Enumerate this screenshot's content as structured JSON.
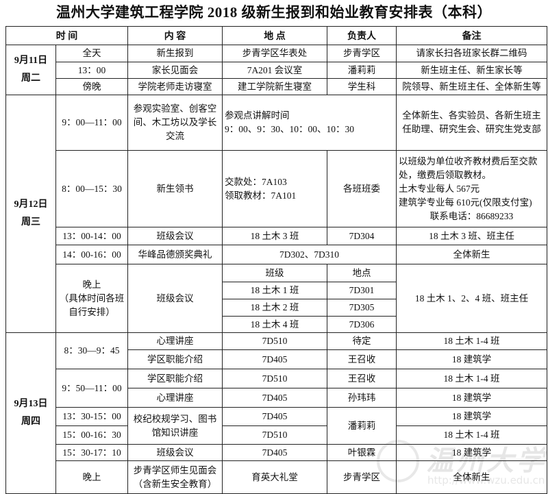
{
  "title": "温州大学建筑工程学院 2018 级新生报到和始业教育安排表（本科）",
  "header": {
    "time": "时 间",
    "content": "内 容",
    "place": "地 点",
    "person": "负责人",
    "note": "备注"
  },
  "day1": {
    "date": "9月11日",
    "weekday": "周二",
    "rows": [
      {
        "time": "全天",
        "content": "新生报到",
        "place": "步青学区华表处",
        "person": "步青学区",
        "note": "请家长扫各班家长群二维码"
      },
      {
        "time": "13：00",
        "content": "家长见面会",
        "place": "7A201 会议室",
        "person": "潘莉莉",
        "note": "新生班主任、新生家长等"
      },
      {
        "time": "傍晚",
        "content": "学院老师走访寝室",
        "place": "建工学院新生寝室",
        "person": "学生科",
        "note": "院领导、新生班主任、全体新生等"
      }
    ]
  },
  "day2": {
    "date": "9月12日",
    "weekday": "周三",
    "visit": {
      "time": "9：00—11：00",
      "content": "参观实验室、创客空间、木工坊以及学长交流",
      "place_line1": "参观点讲解时间",
      "place_line2": "9：00、9：30、10：00、10：30",
      "note": "全体新生、各实验员、各新生班主任助理、研究生会、研究生党支部"
    },
    "books": {
      "time": "8：00—15：30",
      "content": "新生领书",
      "place_line1": "交款处：7A103",
      "place_line2": "领取教材：7A101",
      "person": "各班班委",
      "note_lines": [
        "以班级为单位收齐教材费后至交款处，缴费后领取教材。",
        "土木专业每人 567元",
        "建筑学专业每 610元(仅限支付宝)",
        "联系电话：86689233"
      ]
    },
    "meeting3": {
      "time": "13：00-14：00",
      "content": "班级会议",
      "place": "18 土木 3 班",
      "person": "7D304",
      "note": "18 土木 3 班、班主任"
    },
    "award": {
      "time": "14：00-16：00",
      "content": "华峰品德颁奖典礼",
      "place": "7D302、7D310",
      "note": "全体新生"
    },
    "evening": {
      "time_line1": "晚上",
      "time_line2": "（具体时间各班自行安排）",
      "content": "班级会议",
      "sub_header": {
        "class": "班级",
        "place": "地点"
      },
      "classes": [
        {
          "class": "18 土木 1 班",
          "place": "7D301"
        },
        {
          "class": "18 土木 2 班",
          "place": "7D305"
        },
        {
          "class": "18 土木 4 班",
          "place": "7D306"
        }
      ],
      "note": "18 土木 1、2、4 班、班主任"
    }
  },
  "day3": {
    "date": "9月13日",
    "weekday": "周四",
    "slot1": {
      "time": "8：30—9：45",
      "rows": [
        {
          "content": "心理讲座",
          "place": "7D510",
          "person": "待定",
          "note": "18 土木 1-4 班"
        },
        {
          "content": "学区职能介绍",
          "place": "7D405",
          "person": "王召收",
          "note": "18 建筑学"
        }
      ]
    },
    "slot2": {
      "time": "9：50—11：00",
      "rows": [
        {
          "content": "学区职能介绍",
          "place": "7D510",
          "person": "王召收",
          "note": "18 土木 1-4 班"
        },
        {
          "content": "心理讲座",
          "place": "7D405",
          "person": "孙玮玮",
          "note": "18 建筑学"
        }
      ]
    },
    "lecture": {
      "content": "校纪校规学习、图书馆知识讲座",
      "person": "潘莉莉",
      "rows": [
        {
          "time": "13：30-15：00",
          "place": "7D405",
          "note": "18 建筑学"
        },
        {
          "time": "15：00-16：30",
          "place": "7D510",
          "note": "18 土木 1-4 班"
        }
      ]
    },
    "meeting": {
      "time": "15：30-17：10",
      "content": "班级会议",
      "place": "7D405",
      "person": "叶银霖",
      "note": "18 建筑学"
    },
    "evening": {
      "time": "晚上",
      "content_line1": "步青学区师生见面会",
      "content_line2": "（含新生安全教育）",
      "place": "育英大礼堂",
      "person": "步青学区",
      "note": "全体新生"
    }
  },
  "watermark": {
    "text": "温州大学",
    "url": "http://www.wzu.edu.cn"
  }
}
